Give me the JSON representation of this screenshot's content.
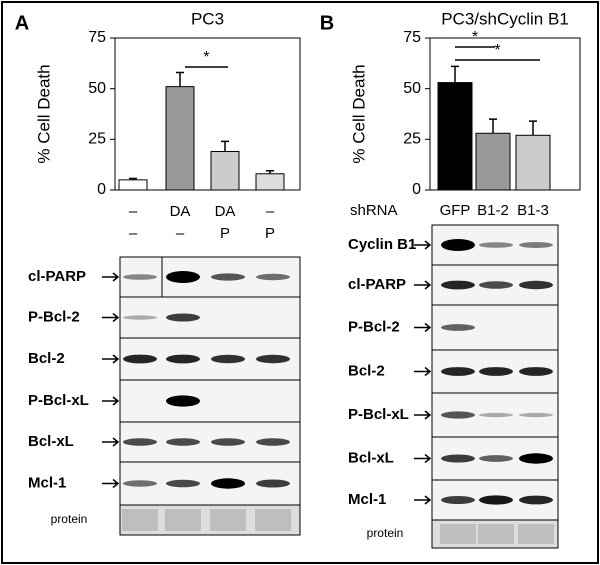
{
  "panel_labels": [
    "A",
    "B"
  ],
  "chart_data": [
    {
      "type": "bar",
      "title": "PC3",
      "ylabel": "% Cell Death",
      "categories": [
        "–",
        "DA",
        "DA",
        "–"
      ],
      "categories_row2": [
        "–",
        "–",
        "P",
        "P"
      ],
      "values": [
        5,
        51,
        19,
        8
      ],
      "errors": [
        0.7,
        7,
        5,
        1.5
      ],
      "colors": [
        "#ffffff",
        "#999999",
        "#cccccc",
        "#dddddd"
      ],
      "ylim": [
        0,
        75
      ],
      "yticks": [
        0,
        25,
        50,
        75
      ],
      "annotations": [
        "*"
      ]
    },
    {
      "type": "bar",
      "title": "PC3/shCyclin B1",
      "ylabel": "% Cell Death",
      "category_title": "shRNA",
      "categories": [
        "GFP",
        "B1-2",
        "B1-3"
      ],
      "values": [
        53,
        28,
        27
      ],
      "errors": [
        8,
        7,
        7
      ],
      "colors": [
        "#000000",
        "#999999",
        "#cccccc"
      ],
      "ylim": [
        0,
        75
      ],
      "yticks": [
        0,
        25,
        50,
        75
      ],
      "annotations": [
        "*",
        "*"
      ]
    }
  ],
  "blot_a": {
    "rows": [
      "cl-PARP",
      "P-Bcl-2",
      "Bcl-2",
      "P-Bcl-xL",
      "Bcl-xL",
      "Mcl-1",
      "protein"
    ]
  },
  "blot_b": {
    "rows": [
      "Cyclin B1",
      "cl-PARP",
      "P-Bcl-2",
      "Bcl-2",
      "P-Bcl-xL",
      "Bcl-xL",
      "Mcl-1",
      "protein"
    ]
  }
}
